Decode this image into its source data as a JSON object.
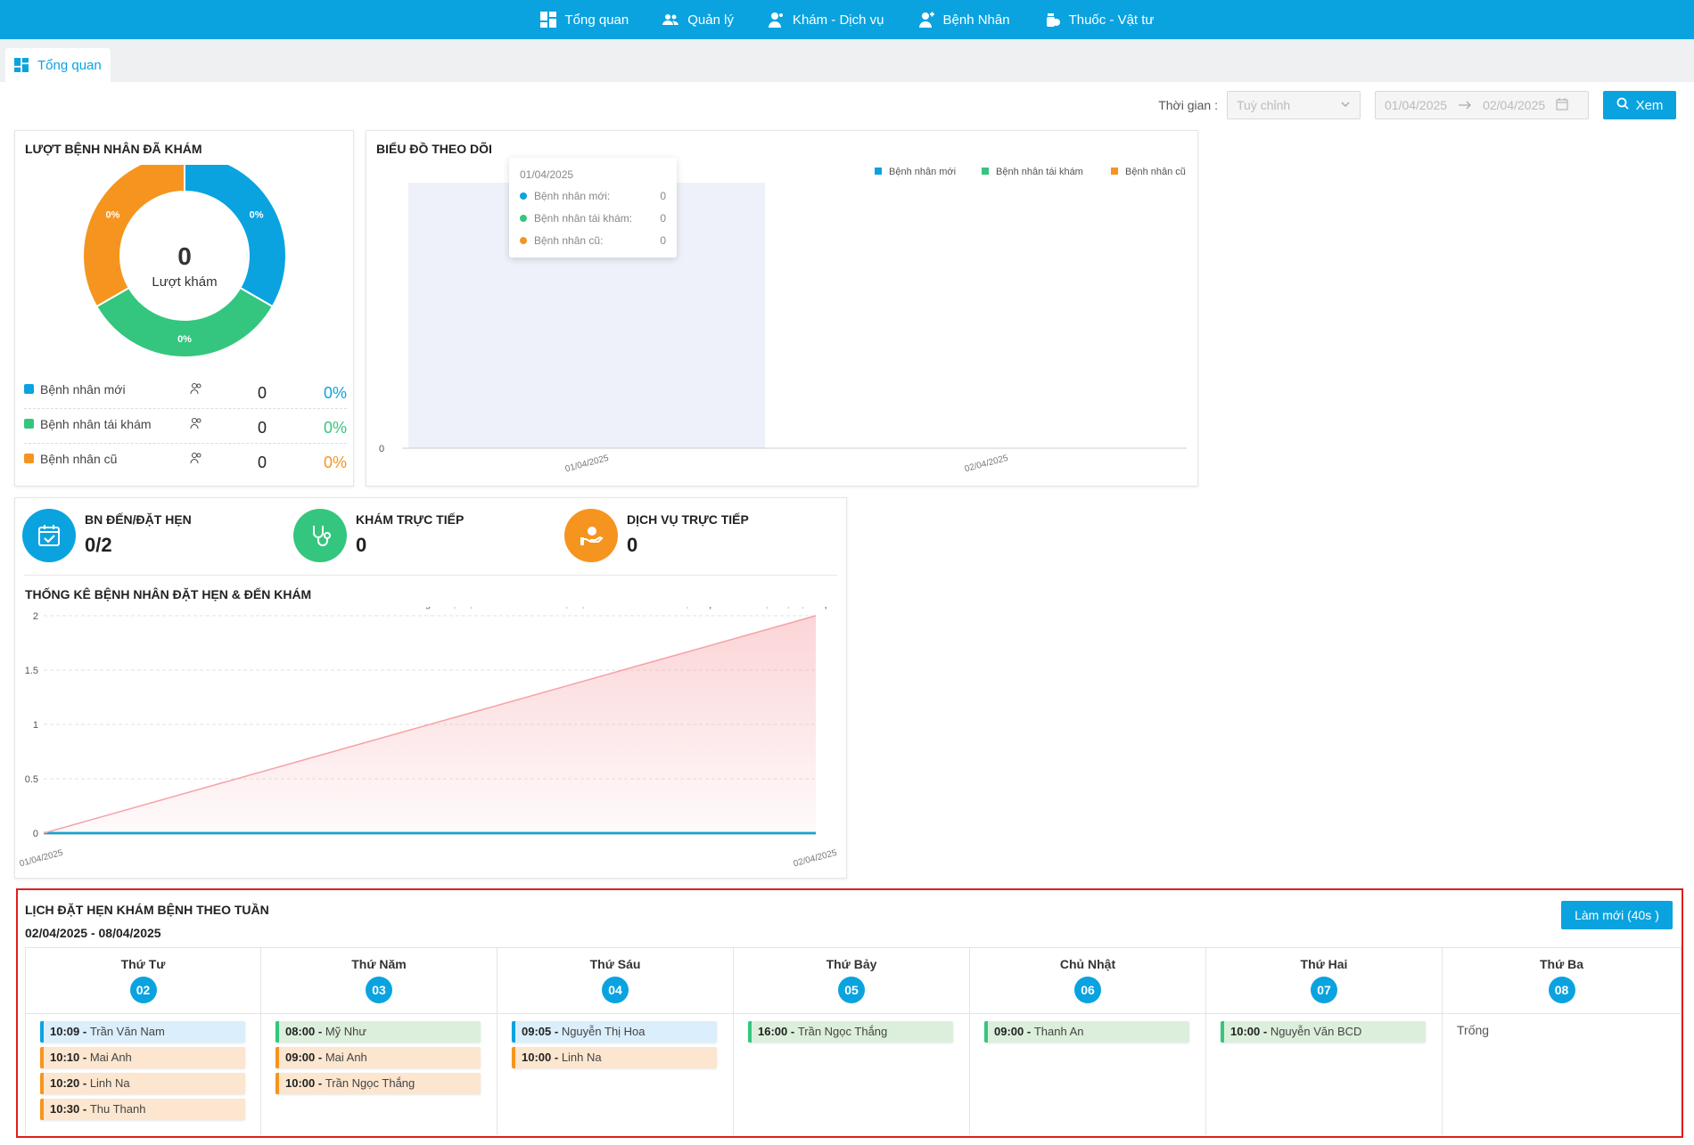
{
  "nav": {
    "items": [
      {
        "label": "Tổng quan",
        "icon": "dashboard-icon"
      },
      {
        "label": "Quản lý",
        "icon": "users-icon"
      },
      {
        "label": "Khám - Dịch vụ",
        "icon": "doctor-icon"
      },
      {
        "label": "Bệnh Nhân",
        "icon": "patient-icon"
      },
      {
        "label": "Thuốc - Vật tư",
        "icon": "medicine-icon"
      }
    ]
  },
  "tab": {
    "label": "Tổng quan",
    "icon": "dashboard-icon"
  },
  "filter": {
    "time_label": "Thời gian :",
    "select_value": "Tuỳ chỉnh",
    "date_from": "01/04/2025",
    "date_to": "02/04/2025",
    "search_button": "Xem"
  },
  "donut": {
    "title": "LƯỢT BỆNH NHÂN ĐÃ KHÁM",
    "center_value": "0",
    "center_label": "Lượt khám",
    "segments": [
      {
        "label": "Bệnh nhân mới",
        "count": "0",
        "percent": "0%",
        "color": "#0aa3e0",
        "share": 0.3333
      },
      {
        "label": "Bệnh nhân tái khám",
        "count": "0",
        "percent": "0%",
        "color": "#34c67e",
        "share": 0.3333
      },
      {
        "label": "Bệnh nhân cũ",
        "count": "0",
        "percent": "0%",
        "color": "#f5951f",
        "share": 0.3334
      }
    ]
  },
  "bar_chart": {
    "title": "BIỂU ĐỒ THEO DÕI",
    "tooltip": {
      "date": "01/04/2025",
      "rows": [
        {
          "label": "Bệnh nhân mới:",
          "value": "0",
          "color": "#0aa3e0"
        },
        {
          "label": "Bệnh nhân tái khám:",
          "value": "0",
          "color": "#34c67e"
        },
        {
          "label": "Bệnh nhân cũ:",
          "value": "0",
          "color": "#f5951f"
        }
      ]
    }
  },
  "stats": {
    "items": [
      {
        "label": "BN ĐẾN/ĐẶT HẸN",
        "value": "0/2",
        "color": "#0aa3e0",
        "icon": "calendar-check-icon"
      },
      {
        "label": "KHÁM TRỰC TIẾP",
        "value": "0",
        "color": "#34c67e",
        "icon": "stethoscope-icon"
      },
      {
        "label": "DỊCH VỤ TRỰC TIẾP",
        "value": "0",
        "color": "#f5951f",
        "icon": "service-hand-icon"
      }
    ],
    "chart_title": "THỐNG KÊ BỆNH NHÂN ĐẶT HẸN & ĐẾN KHÁM"
  },
  "chart_data": [
    {
      "type": "bar",
      "categories": [
        "01/04/2025",
        "02/04/2025"
      ],
      "series": [
        {
          "name": "Bệnh nhân mới",
          "color": "#0aa3e0",
          "values": [
            0,
            0
          ]
        },
        {
          "name": "Bệnh nhân tái khám",
          "color": "#34c67e",
          "values": [
            0,
            0
          ]
        },
        {
          "name": "Bệnh nhân cũ",
          "color": "#f5951f",
          "values": [
            0,
            0
          ]
        }
      ],
      "yticks": [
        "0"
      ],
      "highlight_category": "01/04/2025",
      "legend_position": "top-right",
      "grid": false
    },
    {
      "type": "area",
      "categories": [
        "01/04/2025",
        "02/04/2025"
      ],
      "series": [
        {
          "name": "Tổng số đặt hẹn",
          "color": "#f7a1a6",
          "values": [
            0,
            2
          ]
        },
        {
          "name": "BN đến/Đặt hẹn",
          "color": "#0aa3e0",
          "values": [
            0,
            0
          ]
        },
        {
          "name": "BN khám trực tiếp",
          "color": "#34c67e",
          "values": [
            0,
            0
          ]
        },
        {
          "name": "Dịch vụ trực tiếp",
          "color": "#f5951f",
          "values": [
            0,
            0
          ]
        }
      ],
      "ylim": [
        0,
        2
      ],
      "yticks": [
        "0",
        "0.5",
        "1",
        "1.5",
        "2"
      ],
      "legend_position": "top-right",
      "grid": true
    }
  ],
  "calendar": {
    "title": "LỊCH ĐẶT HẸN KHÁM BỆNH THEO TUẦN",
    "range": "02/04/2025 - 08/04/2025",
    "refresh_button": "Làm mới (40s )",
    "empty_label": "Trống",
    "days": [
      {
        "name": "Thứ Tư",
        "num": "02",
        "appts": [
          {
            "time": "10:09 -",
            "name": "Trần Văn Nam",
            "color": "blue"
          },
          {
            "time": "10:10 -",
            "name": "Mai Anh",
            "color": "orange"
          },
          {
            "time": "10:20 -",
            "name": "Linh Na",
            "color": "orange"
          },
          {
            "time": "10:30 -",
            "name": "Thu Thanh",
            "color": "orange"
          }
        ]
      },
      {
        "name": "Thứ Năm",
        "num": "03",
        "appts": [
          {
            "time": "08:00 -",
            "name": "Mỹ Như",
            "color": "green"
          },
          {
            "time": "09:00 -",
            "name": "Mai Anh",
            "color": "orange"
          },
          {
            "time": "10:00 -",
            "name": "Trần Ngọc Thắng",
            "color": "orange"
          }
        ]
      },
      {
        "name": "Thứ Sáu",
        "num": "04",
        "appts": [
          {
            "time": "09:05 -",
            "name": "Nguyễn Thị Hoa",
            "color": "blue"
          },
          {
            "time": "10:00 -",
            "name": "Linh Na",
            "color": "orange"
          }
        ]
      },
      {
        "name": "Thứ Bảy",
        "num": "05",
        "appts": [
          {
            "time": "16:00 -",
            "name": "Trần Ngọc Thắng",
            "color": "green"
          }
        ]
      },
      {
        "name": "Chủ Nhật",
        "num": "06",
        "appts": [
          {
            "time": "09:00 -",
            "name": "Thanh An",
            "color": "green"
          }
        ]
      },
      {
        "name": "Thứ Hai",
        "num": "07",
        "appts": [
          {
            "time": "10:00 -",
            "name": "Nguyễn Văn BCD",
            "color": "green"
          }
        ]
      },
      {
        "name": "Thứ Ba",
        "num": "08",
        "appts": []
      }
    ]
  }
}
